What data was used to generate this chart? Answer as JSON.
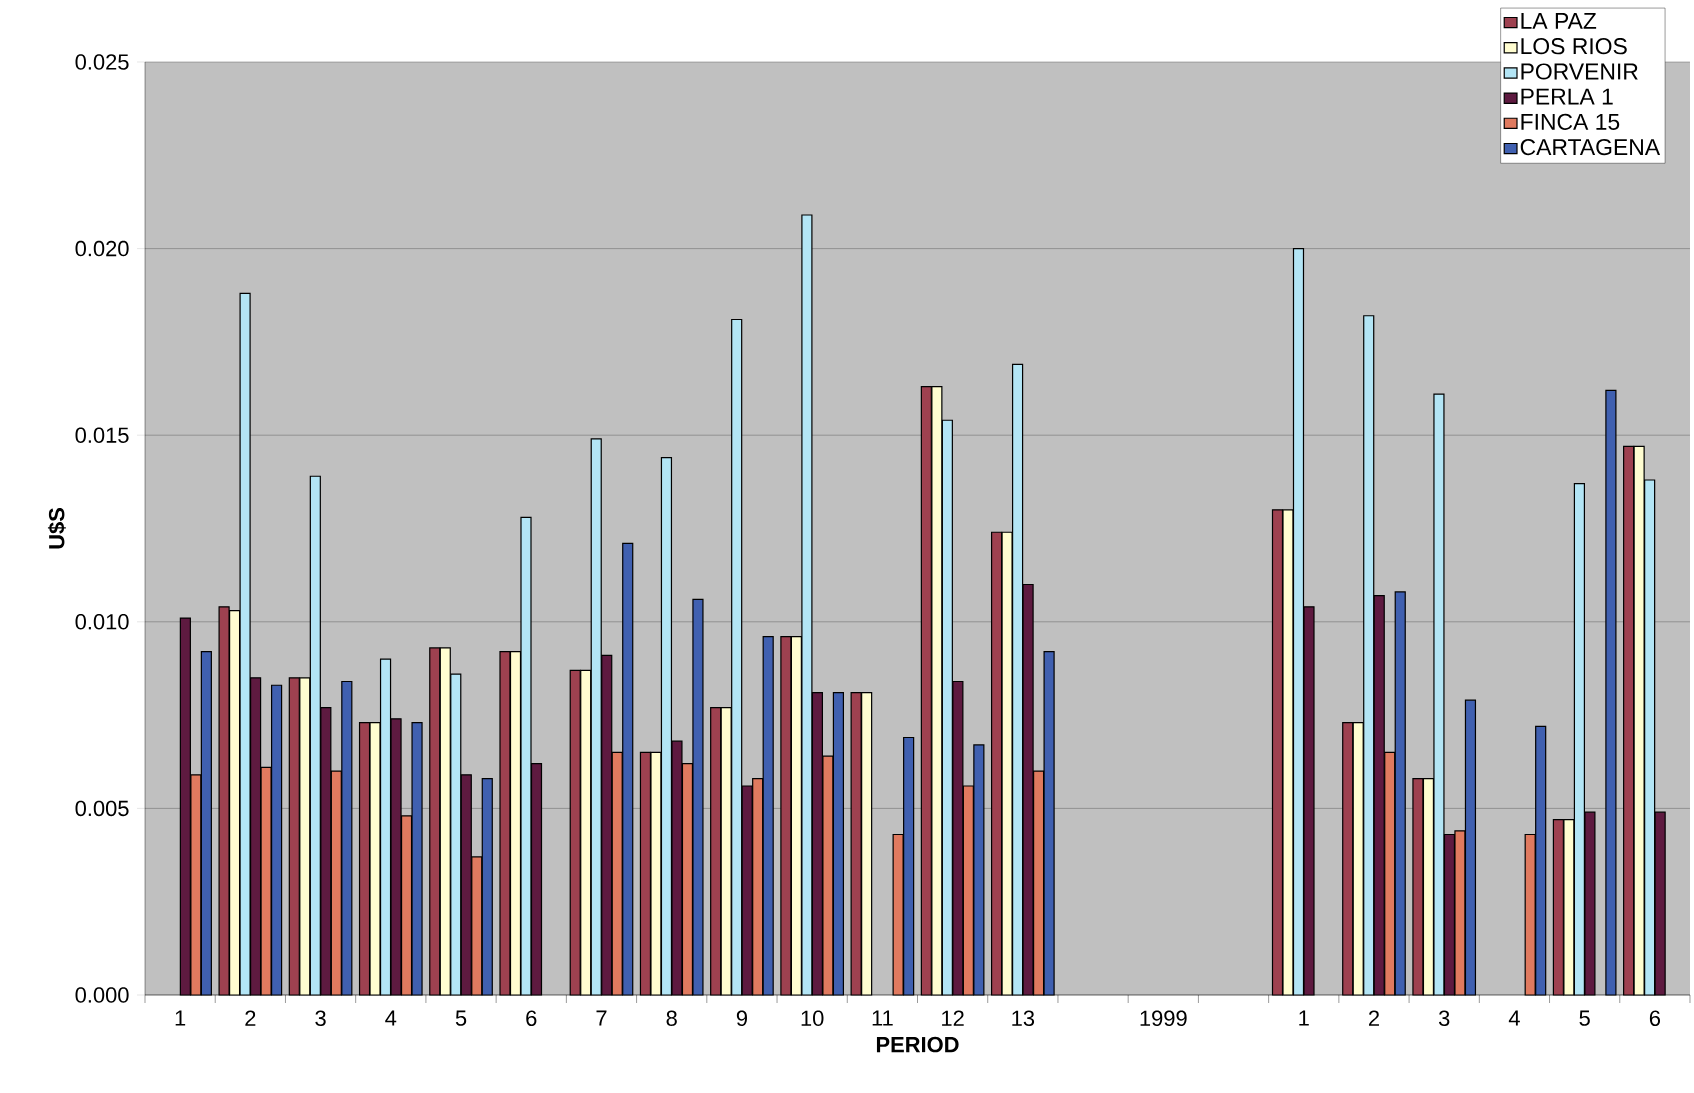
{
  "chart_data": {
    "type": "bar",
    "xlabel": "PERIOD",
    "ylabel": "U$S",
    "categories": [
      "1",
      "2",
      "3",
      "4",
      "5",
      "6",
      "7",
      "8",
      "9",
      "10",
      "11",
      "12",
      "13",
      null,
      "1999",
      null,
      "1",
      "2",
      "3",
      "4",
      "5",
      "6"
    ],
    "series": [
      {
        "name": "LA PAZ",
        "color": "#9e4150",
        "values": [
          null,
          0.0104,
          0.0085,
          0.0073,
          0.0093,
          0.0092,
          0.0087,
          0.0065,
          0.0077,
          0.0096,
          0.0081,
          0.0163,
          0.0124,
          null,
          null,
          null,
          0.013,
          0.0073,
          0.0058,
          null,
          0.0047,
          0.0147
        ]
      },
      {
        "name": "LOS RIOS",
        "color": "#fffdd0",
        "values": [
          null,
          0.0103,
          0.0085,
          0.0073,
          0.0093,
          0.0092,
          0.0087,
          0.0065,
          0.0077,
          0.0096,
          0.0081,
          0.0163,
          0.0124,
          null,
          null,
          null,
          0.013,
          0.0073,
          0.0058,
          null,
          0.0047,
          0.0147
        ]
      },
      {
        "name": "PORVENIR",
        "color": "#b3e5f5",
        "values": [
          null,
          0.0188,
          0.0139,
          0.009,
          0.0086,
          0.0128,
          0.0149,
          0.0144,
          0.0181,
          0.0209,
          null,
          0.0154,
          0.0169,
          null,
          null,
          null,
          0.02,
          0.0182,
          0.0161,
          null,
          0.0137,
          0.0138
        ]
      },
      {
        "name": "PERLA 1",
        "color": "#5e1a40",
        "values": [
          0.0101,
          0.0085,
          0.0077,
          0.0074,
          0.0059,
          0.0062,
          0.0091,
          0.0068,
          0.0056,
          0.0081,
          null,
          0.0084,
          0.011,
          null,
          null,
          null,
          0.0104,
          0.0107,
          0.0043,
          null,
          0.0049,
          0.0049
        ]
      },
      {
        "name": "FINCA 15",
        "color": "#e07a5f",
        "values": [
          0.0059,
          0.0061,
          0.006,
          0.0048,
          0.0037,
          null,
          0.0065,
          0.0062,
          0.0058,
          0.0064,
          0.0043,
          0.0056,
          0.006,
          null,
          null,
          null,
          null,
          0.0065,
          0.0044,
          0.0043,
          null,
          null
        ]
      },
      {
        "name": "CARTAGENA",
        "color": "#4060b0",
        "values": [
          0.0092,
          0.0083,
          0.0084,
          0.0073,
          0.0058,
          null,
          0.0121,
          0.0106,
          0.0096,
          0.0081,
          0.0069,
          0.0067,
          0.0092,
          null,
          null,
          null,
          null,
          0.0108,
          0.0079,
          0.0072,
          0.0162,
          null
        ]
      }
    ],
    "ylim": [
      0,
      0.025
    ],
    "yticks": [
      {
        "value": 0,
        "label": "0.000"
      },
      0.005,
      {
        "value": 0.01,
        "label": "0.010"
      },
      0.015,
      {
        "value": 0.02,
        "label": "0.020"
      },
      0.025
    ],
    "grid": "y",
    "legend": "top right"
  }
}
